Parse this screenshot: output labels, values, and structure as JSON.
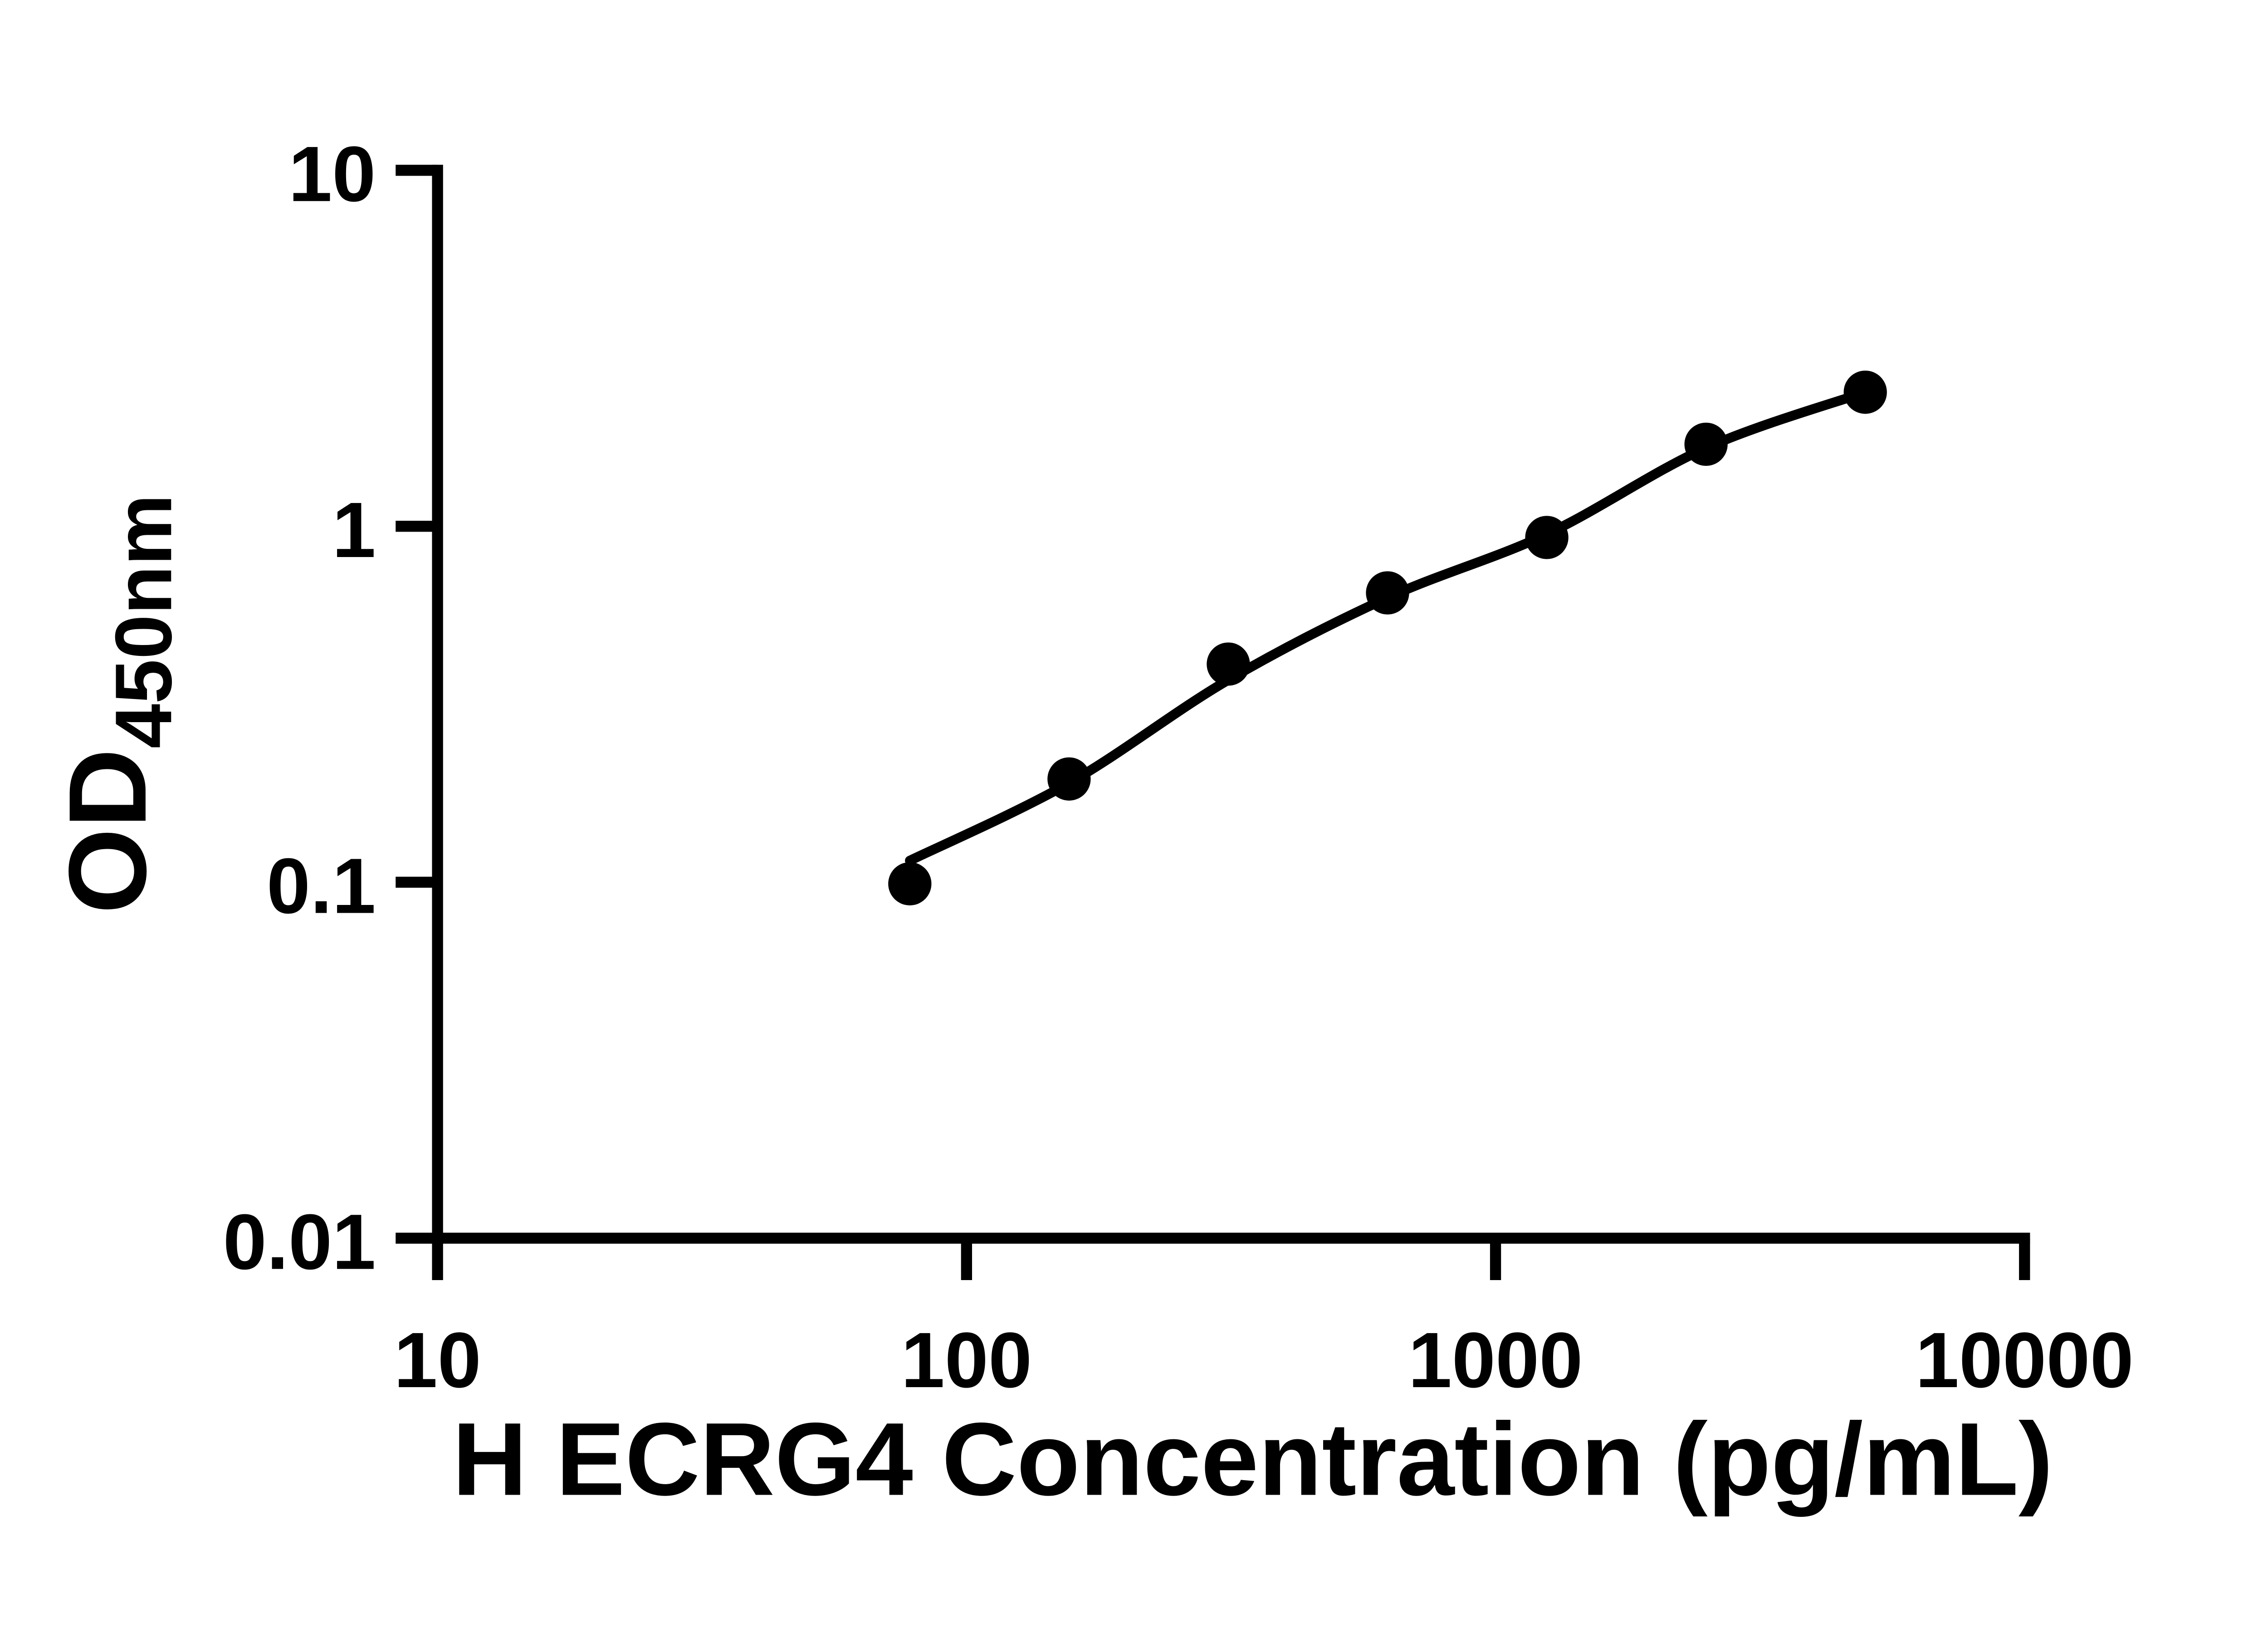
{
  "figure": {
    "background_color": "#ffffff",
    "ink_color": "#000000"
  },
  "chart_data": {
    "type": "scatter",
    "title": "",
    "xlabel": "H ECRG4 Concentration (pg/mL)",
    "ylabel_main": "OD",
    "ylabel_subscript": "450nm",
    "x_scale": "log10",
    "y_scale": "log10",
    "xlim": [
      10,
      10000
    ],
    "ylim": [
      0.01,
      10
    ],
    "grid": false,
    "legend": null,
    "x_ticks": [
      {
        "value": 10,
        "label": "10"
      },
      {
        "value": 100,
        "label": "100"
      },
      {
        "value": 1000,
        "label": "1000"
      },
      {
        "value": 10000,
        "label": "10000"
      }
    ],
    "y_ticks": [
      {
        "value": 0.01,
        "label": "0.01"
      },
      {
        "value": 0.1,
        "label": "0.1"
      },
      {
        "value": 1,
        "label": "1"
      },
      {
        "value": 10,
        "label": "10"
      }
    ],
    "series": [
      {
        "name": "standard-points",
        "kind": "scatter",
        "marker": "filled-circle",
        "points": [
          {
            "x": 78.125,
            "y": 0.099
          },
          {
            "x": 156.25,
            "y": 0.195
          },
          {
            "x": 312.5,
            "y": 0.41
          },
          {
            "x": 625,
            "y": 0.65
          },
          {
            "x": 1250,
            "y": 0.93
          },
          {
            "x": 2500,
            "y": 1.7
          },
          {
            "x": 5000,
            "y": 2.38
          }
        ]
      },
      {
        "name": "fit-curve",
        "kind": "line",
        "points": [
          {
            "x": 78.125,
            "y": 0.115
          },
          {
            "x": 156.25,
            "y": 0.19
          },
          {
            "x": 312.5,
            "y": 0.37
          },
          {
            "x": 625,
            "y": 0.63
          },
          {
            "x": 1250,
            "y": 0.95
          },
          {
            "x": 2500,
            "y": 1.66
          },
          {
            "x": 5000,
            "y": 2.38
          }
        ]
      }
    ]
  }
}
